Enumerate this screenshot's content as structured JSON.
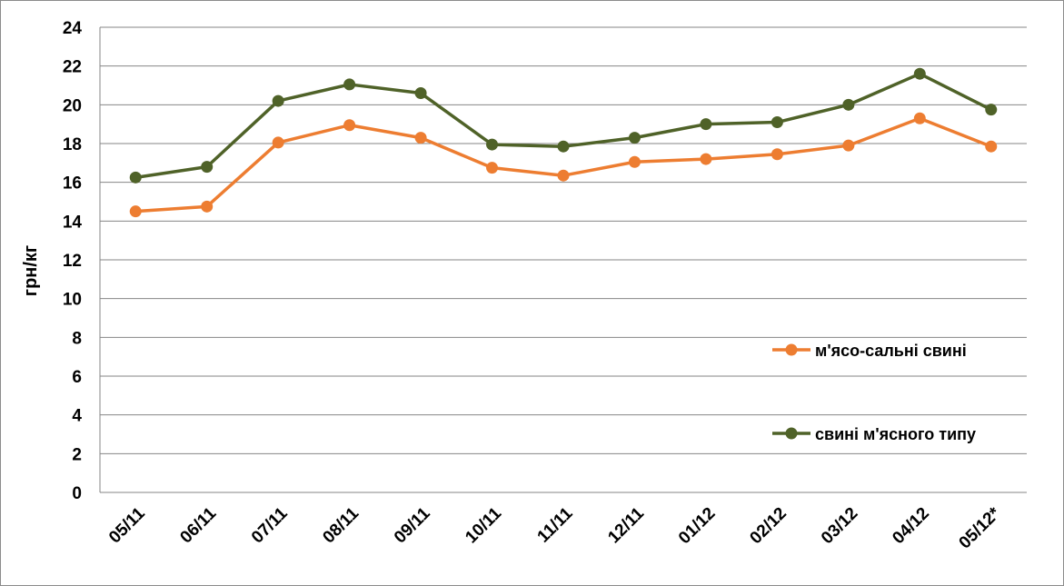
{
  "chart_data": {
    "type": "line",
    "title": "",
    "xlabel": "",
    "ylabel": "грн/кг",
    "ylim": [
      0,
      24
    ],
    "ytick_step": 2,
    "yticks": [
      "0",
      "2",
      "4",
      "6",
      "8",
      "10",
      "12",
      "14",
      "16",
      "18",
      "20",
      "22",
      "24"
    ],
    "grid": "horizontal",
    "legend_position": "right",
    "categories": [
      "05/11",
      "06/11",
      "07/11",
      "08/11",
      "09/11",
      "10/11",
      "11/11",
      "12/11",
      "01/12",
      "02/12",
      "03/12",
      "04/12",
      "05/12*"
    ],
    "series": [
      {
        "name": "м'ясо-сальні свині",
        "color": "#ed7d31",
        "values": [
          14.5,
          14.75,
          18.05,
          18.95,
          18.3,
          16.75,
          16.35,
          17.05,
          17.2,
          17.45,
          17.9,
          19.3,
          17.85
        ]
      },
      {
        "name": "свині м'ясного типу",
        "color": "#4f6228",
        "values": [
          16.25,
          16.8,
          20.2,
          21.05,
          20.6,
          17.95,
          17.85,
          18.3,
          19.0,
          19.1,
          20.0,
          21.6,
          19.75
        ]
      }
    ]
  }
}
